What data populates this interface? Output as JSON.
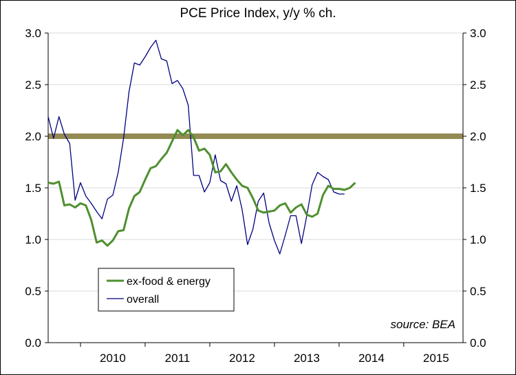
{
  "chart_data": {
    "type": "line",
    "title": "PCE Price Index, y/y % ch.",
    "xlabel": "",
    "ylabel": "",
    "ylim": [
      0,
      3
    ],
    "xlim": [
      "2009-07",
      "2015-12"
    ],
    "y_ticks": [
      "0.0",
      "0.5",
      "1.0",
      "1.5",
      "2.0",
      "2.5",
      "3.0"
    ],
    "y_tick_values": [
      0,
      0.5,
      1.0,
      1.5,
      2.0,
      2.5,
      3.0
    ],
    "y_axis_right_mirrors_left": true,
    "x_tick_labels": [
      "2010",
      "2011",
      "2012",
      "2013",
      "2014",
      "2015"
    ],
    "grid": "horizontal",
    "legend_placement": "lower-left",
    "annotation": "source: BEA",
    "reference_line": {
      "value": 2.0,
      "color": "#948a54"
    },
    "series": [
      {
        "name": "ex-food & energy",
        "color": "#4f8f2f",
        "points": [
          [
            "2009-07",
            1.55
          ],
          [
            "2009-08",
            1.54
          ],
          [
            "2009-09",
            1.56
          ],
          [
            "2009-10",
            1.33
          ],
          [
            "2009-11",
            1.34
          ],
          [
            "2009-12",
            1.31
          ],
          [
            "2010-01",
            1.35
          ],
          [
            "2010-02",
            1.33
          ],
          [
            "2010-03",
            1.19
          ],
          [
            "2010-04",
            0.97
          ],
          [
            "2010-05",
            0.99
          ],
          [
            "2010-06",
            0.94
          ],
          [
            "2010-07",
            0.99
          ],
          [
            "2010-08",
            1.08
          ],
          [
            "2010-09",
            1.09
          ],
          [
            "2010-10",
            1.3
          ],
          [
            "2010-11",
            1.42
          ],
          [
            "2010-12",
            1.46
          ],
          [
            "2011-01",
            1.58
          ],
          [
            "2011-02",
            1.69
          ],
          [
            "2011-03",
            1.71
          ],
          [
            "2011-04",
            1.78
          ],
          [
            "2011-05",
            1.84
          ],
          [
            "2011-06",
            1.95
          ],
          [
            "2011-07",
            2.06
          ],
          [
            "2011-08",
            2.01
          ],
          [
            "2011-09",
            2.06
          ],
          [
            "2011-10",
            1.99
          ],
          [
            "2011-11",
            1.86
          ],
          [
            "2011-12",
            1.88
          ],
          [
            "2012-01",
            1.82
          ],
          [
            "2012-02",
            1.65
          ],
          [
            "2012-03",
            1.66
          ],
          [
            "2012-04",
            1.73
          ],
          [
            "2012-05",
            1.65
          ],
          [
            "2012-06",
            1.58
          ],
          [
            "2012-07",
            1.52
          ],
          [
            "2012-08",
            1.5
          ],
          [
            "2012-09",
            1.4
          ],
          [
            "2012-10",
            1.28
          ],
          [
            "2012-11",
            1.26
          ],
          [
            "2012-12",
            1.27
          ],
          [
            "2013-01",
            1.28
          ],
          [
            "2013-02",
            1.33
          ],
          [
            "2013-03",
            1.35
          ],
          [
            "2013-04",
            1.26
          ],
          [
            "2013-05",
            1.31
          ],
          [
            "2013-06",
            1.34
          ],
          [
            "2013-07",
            1.24
          ],
          [
            "2013-08",
            1.22
          ],
          [
            "2013-09",
            1.25
          ],
          [
            "2013-10",
            1.43
          ],
          [
            "2013-11",
            1.52
          ],
          [
            "2013-12",
            1.49
          ],
          [
            "2014-01",
            1.49
          ],
          [
            "2014-02",
            1.48
          ],
          [
            "2014-03",
            1.5
          ],
          [
            "2014-04",
            1.55
          ]
        ]
      },
      {
        "name": "overall",
        "color": "#000080",
        "points": [
          [
            "2009-07",
            2.19
          ],
          [
            "2009-08",
            1.98
          ],
          [
            "2009-09",
            2.19
          ],
          [
            "2009-10",
            2.02
          ],
          [
            "2009-11",
            1.93
          ],
          [
            "2009-12",
            1.38
          ],
          [
            "2010-01",
            1.55
          ],
          [
            "2010-02",
            1.42
          ],
          [
            "2010-03",
            1.35
          ],
          [
            "2010-04",
            1.27
          ],
          [
            "2010-05",
            1.2
          ],
          [
            "2010-06",
            1.39
          ],
          [
            "2010-07",
            1.43
          ],
          [
            "2010-08",
            1.65
          ],
          [
            "2010-09",
            1.98
          ],
          [
            "2010-10",
            2.43
          ],
          [
            "2010-11",
            2.71
          ],
          [
            "2010-12",
            2.69
          ],
          [
            "2011-01",
            2.77
          ],
          [
            "2011-02",
            2.86
          ],
          [
            "2011-03",
            2.93
          ],
          [
            "2011-04",
            2.75
          ],
          [
            "2011-05",
            2.73
          ],
          [
            "2011-06",
            2.51
          ],
          [
            "2011-07",
            2.54
          ],
          [
            "2011-08",
            2.46
          ],
          [
            "2011-09",
            2.3
          ],
          [
            "2011-10",
            1.62
          ],
          [
            "2011-11",
            1.62
          ],
          [
            "2011-12",
            1.46
          ],
          [
            "2012-01",
            1.55
          ],
          [
            "2012-02",
            1.82
          ],
          [
            "2012-03",
            1.57
          ],
          [
            "2012-04",
            1.54
          ],
          [
            "2012-05",
            1.37
          ],
          [
            "2012-06",
            1.52
          ],
          [
            "2012-07",
            1.29
          ],
          [
            "2012-08",
            0.95
          ],
          [
            "2012-09",
            1.1
          ],
          [
            "2012-10",
            1.37
          ],
          [
            "2012-11",
            1.45
          ],
          [
            "2012-12",
            1.16
          ],
          [
            "2013-01",
            0.99
          ],
          [
            "2013-02",
            0.86
          ],
          [
            "2013-03",
            1.04
          ],
          [
            "2013-04",
            1.23
          ],
          [
            "2013-05",
            1.23
          ],
          [
            "2013-06",
            0.96
          ],
          [
            "2013-07",
            1.23
          ],
          [
            "2013-08",
            1.53
          ],
          [
            "2013-09",
            1.65
          ],
          [
            "2013-10",
            1.61
          ],
          [
            "2013-11",
            1.58
          ],
          [
            "2013-12",
            1.46
          ],
          [
            "2014-01",
            1.44
          ],
          [
            "2014-02",
            1.44
          ]
        ]
      }
    ]
  }
}
